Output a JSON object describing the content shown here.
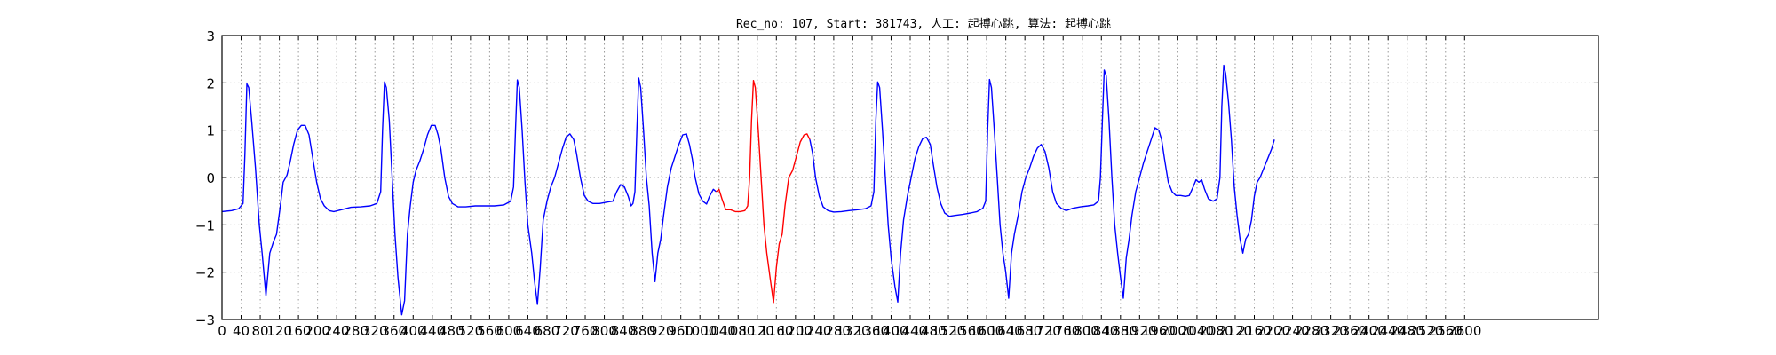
{
  "chart_data": {
    "type": "line",
    "title": "Rec_no: 107, Start: 381743, 人工: 起搏心跳, 算法: 起搏心跳",
    "xlabel": "",
    "ylabel": "",
    "xlim": [
      0,
      2880
    ],
    "ylim": [
      -3,
      3
    ],
    "grid": true,
    "x_ticks": [
      0,
      40,
      80,
      120,
      160,
      200,
      240,
      280,
      320,
      360,
      400,
      440,
      480,
      520,
      560,
      600,
      640,
      680,
      720,
      760,
      800,
      840,
      880,
      920,
      960,
      1000,
      1040,
      1080,
      1120,
      1160,
      1200,
      1240,
      1280,
      1320,
      1360,
      1400,
      1440,
      1480,
      1520,
      1560,
      1600,
      1640,
      1680,
      1720,
      1760,
      1800,
      1840,
      1880,
      1920,
      1960,
      2000,
      2040,
      2080,
      2120,
      2160,
      2200,
      2240,
      2280,
      2320,
      2360,
      2400,
      2440,
      2480,
      2520,
      2560,
      2600
    ],
    "x_tick_labels": [
      "0",
      "40",
      "80",
      "120",
      "160",
      "200",
      "240",
      "280",
      "320",
      "360",
      "400",
      "440",
      "480",
      "520",
      "560",
      "600",
      "640",
      "680",
      "720",
      "760",
      "800",
      "840",
      "880",
      "920",
      "960",
      "1000",
      "1040",
      "1080",
      "1120",
      "1160",
      "1200",
      "1240",
      "1280",
      "1320",
      "1360",
      "1400",
      "1440",
      "1480",
      "1520",
      "1560",
      "1600",
      "1640",
      "1680",
      "1720",
      "1760",
      "1800",
      "1840",
      "1880",
      "1920",
      "1960",
      "2000",
      "2040",
      "2080",
      "2120",
      "2160",
      "2200",
      "2240",
      "2280",
      "2320",
      "2360",
      "2400",
      "2440",
      "2480",
      "2520",
      "2560",
      "2600"
    ],
    "y_ticks": [
      3,
      2,
      1,
      0,
      -1,
      -2,
      -3
    ],
    "y_tick_labels": [
      "3",
      "2",
      "1",
      "0",
      "−1",
      "−2",
      "−3"
    ],
    "colors": {
      "normal": "#0000ff",
      "highlight": "#ff0000",
      "grid": "#999999"
    },
    "series": [
      {
        "color": "#0000ff",
        "points": [
          [
            0,
            -0.72
          ],
          [
            20,
            -0.7
          ],
          [
            35,
            -0.66
          ],
          [
            44,
            -0.55
          ],
          [
            48,
            0.5
          ],
          [
            52,
            1.98
          ],
          [
            56,
            1.9
          ],
          [
            62,
            1.2
          ],
          [
            70,
            0.2
          ],
          [
            78,
            -1.0
          ],
          [
            84,
            -1.6
          ],
          [
            92,
            -2.5
          ],
          [
            100,
            -1.6
          ],
          [
            108,
            -1.35
          ],
          [
            114,
            -1.2
          ],
          [
            122,
            -0.6
          ],
          [
            128,
            -0.1
          ],
          [
            136,
            0.05
          ],
          [
            142,
            0.3
          ],
          [
            150,
            0.7
          ],
          [
            158,
            1.0
          ],
          [
            166,
            1.1
          ],
          [
            174,
            1.1
          ],
          [
            182,
            0.9
          ],
          [
            190,
            0.4
          ],
          [
            198,
            -0.1
          ],
          [
            206,
            -0.45
          ],
          [
            214,
            -0.6
          ],
          [
            224,
            -0.7
          ],
          [
            234,
            -0.72
          ],
          [
            250,
            -0.68
          ],
          [
            270,
            -0.63
          ],
          [
            290,
            -0.62
          ],
          [
            310,
            -0.6
          ],
          [
            324,
            -0.55
          ],
          [
            332,
            -0.3
          ],
          [
            336,
            1.0
          ],
          [
            340,
            2.02
          ],
          [
            344,
            1.9
          ],
          [
            350,
            1.2
          ],
          [
            356,
            0.0
          ],
          [
            362,
            -1.2
          ],
          [
            368,
            -2.1
          ],
          [
            376,
            -2.9
          ],
          [
            382,
            -2.6
          ],
          [
            388,
            -1.2
          ],
          [
            394,
            -0.6
          ],
          [
            400,
            -0.1
          ],
          [
            406,
            0.15
          ],
          [
            414,
            0.35
          ],
          [
            422,
            0.6
          ],
          [
            430,
            0.9
          ],
          [
            438,
            1.1
          ],
          [
            446,
            1.1
          ],
          [
            452,
            0.9
          ],
          [
            458,
            0.6
          ],
          [
            466,
            0.0
          ],
          [
            474,
            -0.4
          ],
          [
            482,
            -0.55
          ],
          [
            494,
            -0.62
          ],
          [
            510,
            -0.62
          ],
          [
            530,
            -0.6
          ],
          [
            550,
            -0.6
          ],
          [
            570,
            -0.6
          ],
          [
            590,
            -0.58
          ],
          [
            604,
            -0.5
          ],
          [
            610,
            -0.2
          ],
          [
            614,
            1.0
          ],
          [
            618,
            2.06
          ],
          [
            622,
            1.9
          ],
          [
            628,
            1.0
          ],
          [
            634,
            -0.1
          ],
          [
            640,
            -1.0
          ],
          [
            648,
            -1.6
          ],
          [
            654,
            -2.2
          ],
          [
            660,
            -2.68
          ],
          [
            666,
            -1.9
          ],
          [
            672,
            -0.9
          ],
          [
            680,
            -0.5
          ],
          [
            688,
            -0.2
          ],
          [
            696,
            0.0
          ],
          [
            704,
            0.3
          ],
          [
            712,
            0.6
          ],
          [
            720,
            0.85
          ],
          [
            728,
            0.92
          ],
          [
            736,
            0.8
          ],
          [
            742,
            0.5
          ],
          [
            750,
            0.0
          ],
          [
            758,
            -0.38
          ],
          [
            766,
            -0.5
          ],
          [
            776,
            -0.55
          ],
          [
            790,
            -0.55
          ],
          [
            806,
            -0.52
          ],
          [
            818,
            -0.5
          ],
          [
            826,
            -0.3
          ],
          [
            834,
            -0.15
          ],
          [
            842,
            -0.2
          ],
          [
            850,
            -0.4
          ],
          [
            856,
            -0.6
          ],
          [
            860,
            -0.55
          ],
          [
            864,
            -0.3
          ],
          [
            868,
            1.0
          ],
          [
            872,
            2.1
          ],
          [
            876,
            1.9
          ],
          [
            882,
            1.0
          ],
          [
            888,
            0.0
          ],
          [
            894,
            -0.6
          ],
          [
            900,
            -1.6
          ],
          [
            906,
            -2.2
          ],
          [
            912,
            -1.6
          ],
          [
            918,
            -1.3
          ],
          [
            924,
            -0.8
          ],
          [
            932,
            -0.2
          ],
          [
            940,
            0.2
          ],
          [
            948,
            0.45
          ],
          [
            956,
            0.7
          ],
          [
            964,
            0.9
          ],
          [
            972,
            0.92
          ],
          [
            978,
            0.7
          ],
          [
            984,
            0.4
          ],
          [
            990,
            0.0
          ],
          [
            998,
            -0.35
          ],
          [
            1006,
            -0.5
          ],
          [
            1014,
            -0.56
          ],
          [
            1020,
            -0.4
          ],
          [
            1028,
            -0.25
          ],
          [
            1034,
            -0.3
          ]
        ]
      },
      {
        "color": "#ff0000",
        "points": [
          [
            1034,
            -0.3
          ],
          [
            1040,
            -0.25
          ],
          [
            1046,
            -0.45
          ],
          [
            1054,
            -0.68
          ],
          [
            1064,
            -0.68
          ],
          [
            1074,
            -0.72
          ],
          [
            1084,
            -0.72
          ],
          [
            1094,
            -0.7
          ],
          [
            1100,
            -0.6
          ],
          [
            1104,
            0.0
          ],
          [
            1108,
            1.2
          ],
          [
            1112,
            2.05
          ],
          [
            1116,
            1.9
          ],
          [
            1122,
            1.0
          ],
          [
            1128,
            0.0
          ],
          [
            1134,
            -1.0
          ],
          [
            1140,
            -1.6
          ],
          [
            1148,
            -2.2
          ],
          [
            1154,
            -2.64
          ],
          [
            1160,
            -1.9
          ],
          [
            1166,
            -1.4
          ],
          [
            1172,
            -1.2
          ],
          [
            1178,
            -0.6
          ],
          [
            1186,
            0.0
          ],
          [
            1194,
            0.15
          ],
          [
            1202,
            0.45
          ],
          [
            1210,
            0.75
          ],
          [
            1218,
            0.9
          ],
          [
            1224,
            0.92
          ],
          [
            1230,
            0.8
          ]
        ]
      },
      {
        "color": "#0000ff",
        "points": [
          [
            1230,
            0.8
          ],
          [
            1236,
            0.5
          ],
          [
            1242,
            0.0
          ],
          [
            1250,
            -0.4
          ],
          [
            1258,
            -0.62
          ],
          [
            1268,
            -0.7
          ],
          [
            1280,
            -0.73
          ],
          [
            1296,
            -0.72
          ],
          [
            1312,
            -0.7
          ],
          [
            1330,
            -0.68
          ],
          [
            1346,
            -0.66
          ],
          [
            1358,
            -0.6
          ],
          [
            1364,
            -0.3
          ],
          [
            1368,
            1.2
          ],
          [
            1372,
            2.02
          ],
          [
            1376,
            1.9
          ],
          [
            1382,
            1.0
          ],
          [
            1388,
            0.0
          ],
          [
            1394,
            -1.0
          ],
          [
            1400,
            -1.7
          ],
          [
            1408,
            -2.3
          ],
          [
            1414,
            -2.63
          ],
          [
            1420,
            -1.6
          ],
          [
            1426,
            -0.9
          ],
          [
            1434,
            -0.4
          ],
          [
            1442,
            0.0
          ],
          [
            1450,
            0.4
          ],
          [
            1458,
            0.65
          ],
          [
            1466,
            0.82
          ],
          [
            1474,
            0.85
          ],
          [
            1482,
            0.7
          ],
          [
            1488,
            0.3
          ],
          [
            1496,
            -0.2
          ],
          [
            1504,
            -0.55
          ],
          [
            1512,
            -0.75
          ],
          [
            1522,
            -0.82
          ],
          [
            1534,
            -0.8
          ],
          [
            1550,
            -0.78
          ],
          [
            1566,
            -0.75
          ],
          [
            1580,
            -0.72
          ],
          [
            1592,
            -0.65
          ],
          [
            1598,
            -0.5
          ],
          [
            1602,
            1.0
          ],
          [
            1606,
            2.07
          ],
          [
            1610,
            1.9
          ],
          [
            1616,
            1.0
          ],
          [
            1622,
            0.0
          ],
          [
            1628,
            -1.0
          ],
          [
            1634,
            -1.6
          ],
          [
            1640,
            -2.0
          ],
          [
            1646,
            -2.55
          ],
          [
            1652,
            -1.6
          ],
          [
            1658,
            -1.2
          ],
          [
            1666,
            -0.8
          ],
          [
            1674,
            -0.3
          ],
          [
            1682,
            0.0
          ],
          [
            1690,
            0.2
          ],
          [
            1698,
            0.45
          ],
          [
            1706,
            0.62
          ],
          [
            1714,
            0.7
          ],
          [
            1722,
            0.55
          ],
          [
            1730,
            0.2
          ],
          [
            1738,
            -0.3
          ],
          [
            1746,
            -0.55
          ],
          [
            1756,
            -0.65
          ],
          [
            1766,
            -0.7
          ],
          [
            1780,
            -0.65
          ],
          [
            1796,
            -0.62
          ],
          [
            1812,
            -0.6
          ],
          [
            1824,
            -0.58
          ],
          [
            1834,
            -0.5
          ],
          [
            1838,
            0.0
          ],
          [
            1842,
            1.2
          ],
          [
            1846,
            2.27
          ],
          [
            1850,
            2.15
          ],
          [
            1856,
            1.2
          ],
          [
            1862,
            0.0
          ],
          [
            1868,
            -1.0
          ],
          [
            1874,
            -1.6
          ],
          [
            1880,
            -2.1
          ],
          [
            1886,
            -2.55
          ],
          [
            1892,
            -1.7
          ],
          [
            1898,
            -1.3
          ],
          [
            1904,
            -0.8
          ],
          [
            1912,
            -0.3
          ],
          [
            1920,
            0.0
          ],
          [
            1928,
            0.3
          ],
          [
            1936,
            0.55
          ],
          [
            1944,
            0.8
          ],
          [
            1952,
            1.05
          ],
          [
            1960,
            1.0
          ],
          [
            1966,
            0.8
          ],
          [
            1972,
            0.4
          ],
          [
            1980,
            -0.1
          ],
          [
            1988,
            -0.3
          ],
          [
            1996,
            -0.38
          ],
          [
            2006,
            -0.38
          ],
          [
            2016,
            -0.4
          ],
          [
            2024,
            -0.38
          ],
          [
            2032,
            -0.2
          ],
          [
            2038,
            -0.05
          ],
          [
            2044,
            -0.1
          ],
          [
            2050,
            -0.05
          ],
          [
            2056,
            -0.25
          ],
          [
            2064,
            -0.45
          ],
          [
            2074,
            -0.5
          ],
          [
            2082,
            -0.45
          ],
          [
            2088,
            0.0
          ],
          [
            2092,
            1.5
          ],
          [
            2096,
            2.37
          ],
          [
            2100,
            2.2
          ],
          [
            2106,
            1.6
          ],
          [
            2112,
            0.8
          ],
          [
            2118,
            -0.2
          ],
          [
            2124,
            -0.8
          ],
          [
            2130,
            -1.3
          ],
          [
            2136,
            -1.6
          ],
          [
            2142,
            -1.3
          ],
          [
            2148,
            -1.2
          ],
          [
            2154,
            -0.9
          ],
          [
            2160,
            -0.4
          ],
          [
            2166,
            -0.1
          ],
          [
            2172,
            0.0
          ],
          [
            2180,
            0.2
          ],
          [
            2188,
            0.4
          ],
          [
            2196,
            0.6
          ],
          [
            2202,
            0.8
          ]
        ]
      }
    ]
  }
}
